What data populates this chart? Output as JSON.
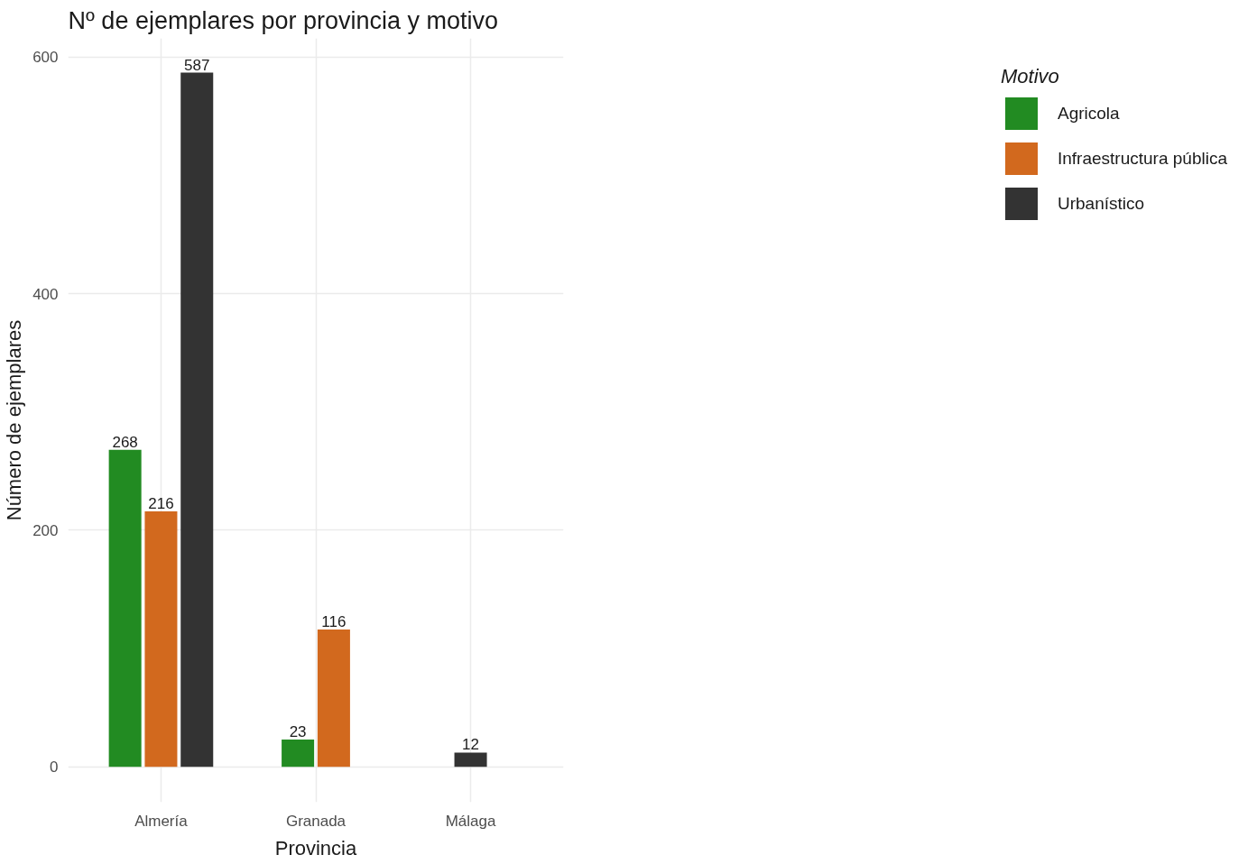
{
  "chart_data": {
    "type": "bar",
    "title": "Nº de ejemplares por provincia y motivo",
    "xlabel": "Provincia",
    "ylabel": "Número de ejemplares",
    "legend_title": "Motivo",
    "categories": [
      "Almería",
      "Granada",
      "Málaga"
    ],
    "series": [
      {
        "name": "Agricola",
        "color": "#228b22",
        "values": [
          268,
          23,
          null
        ]
      },
      {
        "name": "Infraestructura pública",
        "color": "#d2691e",
        "values": [
          216,
          116,
          null
        ]
      },
      {
        "name": "Urbanístico",
        "color": "#333333",
        "values": [
          587,
          null,
          12
        ]
      }
    ],
    "ylim": [
      -30,
      616
    ],
    "yticks": [
      0,
      200,
      400,
      600
    ],
    "grid": true,
    "legend": "right",
    "data_labels": true
  }
}
